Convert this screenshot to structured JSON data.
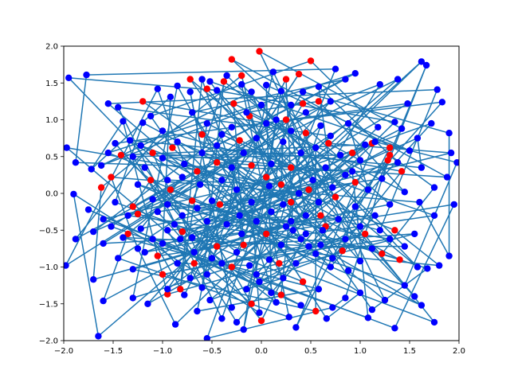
{
  "chart_data": {
    "type": "scatter",
    "title": "",
    "xlabel": "",
    "ylabel": "",
    "xlim": [
      -2.0,
      2.0
    ],
    "ylim": [
      -2.0,
      2.0
    ],
    "grid": false,
    "legend": "none",
    "x_ticks": [
      "−2.0",
      "−1.5",
      "−1.0",
      "−0.5",
      "0.0",
      "0.5",
      "1.0",
      "1.5",
      "2.0"
    ],
    "y_ticks": [
      "−2.0",
      "−1.5",
      "−1.0",
      "−0.5",
      "0.0",
      "0.5",
      "1.0",
      "1.5",
      "2.0"
    ],
    "colors": {
      "blue": "#0000ff",
      "red": "#ff0000",
      "line": "#1f77b4"
    },
    "series": [
      {
        "color": "#0000ff",
        "points": [
          [
            -1.95,
            1.57
          ],
          [
            -1.77,
            1.61
          ],
          [
            -1.55,
            1.22
          ],
          [
            -1.45,
            1.17
          ],
          [
            -1.4,
            0.98
          ],
          [
            -1.33,
            0.72
          ],
          [
            -1.2,
            0.96
          ],
          [
            -1.05,
            1.42
          ],
          [
            -0.92,
            1.31
          ],
          [
            -0.85,
            1.46
          ],
          [
            -0.72,
            1.38
          ],
          [
            -0.6,
            1.55
          ],
          [
            -0.52,
            1.52
          ],
          [
            -0.45,
            1.4
          ],
          [
            -0.35,
            1.6
          ],
          [
            -0.1,
            1.38
          ],
          [
            0.05,
            1.47
          ],
          [
            0.2,
            1.39
          ],
          [
            0.42,
            1.38
          ],
          [
            0.58,
            1.45
          ],
          [
            0.75,
            1.69
          ],
          [
            0.85,
            1.55
          ],
          [
            0.95,
            1.63
          ],
          [
            1.2,
            1.48
          ],
          [
            1.38,
            1.55
          ],
          [
            1.62,
            1.79
          ],
          [
            1.67,
            1.74
          ],
          [
            1.78,
            1.41
          ],
          [
            1.83,
            1.24
          ],
          [
            1.48,
            1.22
          ],
          [
            1.35,
            0.97
          ],
          [
            1.18,
            0.9
          ],
          [
            1.05,
            0.66
          ],
          [
            0.88,
            0.95
          ],
          [
            0.7,
            0.78
          ],
          [
            0.55,
            0.62
          ],
          [
            0.4,
            0.55
          ],
          [
            0.22,
            0.7
          ],
          [
            0.1,
            0.4
          ],
          [
            -1.97,
            0.62
          ],
          [
            -1.88,
            0.42
          ],
          [
            -1.72,
            0.33
          ],
          [
            -1.62,
            0.38
          ],
          [
            -1.55,
            0.55
          ],
          [
            -1.48,
            0.68
          ],
          [
            -1.3,
            0.5
          ],
          [
            -1.18,
            0.35
          ],
          [
            -1.0,
            0.48
          ],
          [
            -0.8,
            0.22
          ],
          [
            -0.62,
            0.12
          ],
          [
            -0.4,
            0.18
          ],
          [
            -0.25,
            0.05
          ],
          [
            -1.9,
            -0.01
          ],
          [
            -1.75,
            -0.22
          ],
          [
            -1.6,
            -0.35
          ],
          [
            -1.48,
            -0.12
          ],
          [
            -1.35,
            -0.3
          ],
          [
            -1.22,
            -0.48
          ],
          [
            -1.05,
            -0.25
          ],
          [
            -0.88,
            -0.42
          ],
          [
            -0.7,
            -0.6
          ],
          [
            -0.55,
            -0.38
          ],
          [
            -1.98,
            -0.98
          ],
          [
            -1.88,
            -0.62
          ],
          [
            -1.7,
            -0.52
          ],
          [
            -1.6,
            -0.68
          ],
          [
            -1.45,
            -0.88
          ],
          [
            -1.3,
            -1.03
          ],
          [
            -1.18,
            -0.8
          ],
          [
            -1.0,
            -0.68
          ],
          [
            -0.85,
            -0.95
          ],
          [
            -0.72,
            -1.15
          ],
          [
            -0.6,
            -1.28
          ],
          [
            -0.5,
            -0.88
          ],
          [
            -1.7,
            -1.17
          ],
          [
            -1.6,
            -1.46
          ],
          [
            -1.3,
            -1.42
          ],
          [
            -1.15,
            -1.5
          ],
          [
            -0.95,
            -1.3
          ],
          [
            -0.78,
            -1.38
          ],
          [
            -0.65,
            -1.6
          ],
          [
            -0.52,
            -1.45
          ],
          [
            -0.4,
            -1.7
          ],
          [
            -0.3,
            -1.55
          ],
          [
            -0.18,
            -1.85
          ],
          [
            -1.65,
            -1.94
          ],
          [
            -0.87,
            -1.78
          ],
          [
            -0.55,
            -1.97
          ],
          [
            -0.25,
            -1.75
          ],
          [
            -0.02,
            -1.62
          ],
          [
            0.15,
            -1.48
          ],
          [
            0.28,
            -1.68
          ],
          [
            0.4,
            -1.52
          ],
          [
            0.58,
            -1.3
          ],
          [
            0.72,
            -1.55
          ],
          [
            0.85,
            -1.42
          ],
          [
            1.0,
            -1.35
          ],
          [
            1.12,
            -1.58
          ],
          [
            1.25,
            -1.45
          ],
          [
            1.35,
            -1.83
          ],
          [
            1.08,
            -1.69
          ],
          [
            0.66,
            -1.7
          ],
          [
            0.35,
            -1.82
          ],
          [
            1.45,
            -1.25
          ],
          [
            1.55,
            -1.4
          ],
          [
            1.62,
            -1.52
          ],
          [
            1.75,
            -1.75
          ],
          [
            1.58,
            -1.0
          ],
          [
            1.68,
            -1.02
          ],
          [
            1.8,
            -0.98
          ],
          [
            1.9,
            -0.85
          ],
          [
            1.45,
            -0.72
          ],
          [
            1.3,
            -0.62
          ],
          [
            1.12,
            -0.75
          ],
          [
            1.0,
            -0.92
          ],
          [
            0.88,
            -1.05
          ],
          [
            0.72,
            -0.88
          ],
          [
            0.6,
            -0.7
          ],
          [
            0.45,
            -0.55
          ],
          [
            0.3,
            -0.38
          ],
          [
            1.92,
            0.55
          ],
          [
            1.88,
            0.22
          ],
          [
            1.95,
            -0.15
          ],
          [
            1.75,
            0.08
          ],
          [
            1.62,
            0.35
          ],
          [
            1.5,
            0.58
          ],
          [
            1.38,
            0.42
          ],
          [
            1.22,
            0.2
          ],
          [
            1.08,
            0.05
          ],
          [
            0.92,
            0.3
          ],
          [
            0.8,
            0.52
          ],
          [
            0.65,
            0.35
          ],
          [
            0.52,
            0.18
          ],
          [
            0.38,
            0.0
          ],
          [
            0.22,
            -0.15
          ],
          [
            0.08,
            0.1
          ],
          [
            -0.1,
            -0.12
          ],
          [
            -0.22,
            -0.3
          ],
          [
            1.98,
            0.42
          ],
          [
            1.9,
            0.82
          ],
          [
            1.72,
            0.95
          ],
          [
            1.58,
            0.75
          ],
          [
            1.42,
            0.88
          ],
          [
            1.15,
            0.7
          ],
          [
            1.0,
            0.45
          ],
          [
            0.85,
            0.25
          ],
          [
            0.72,
            0.08
          ],
          [
            0.58,
            -0.12
          ],
          [
            0.45,
            -0.3
          ],
          [
            0.32,
            -0.5
          ],
          [
            0.2,
            -0.7
          ],
          [
            0.08,
            -0.9
          ],
          [
            -0.05,
            -1.1
          ],
          [
            -0.15,
            -1.3
          ],
          [
            -0.3,
            0.35
          ],
          [
            -0.18,
            0.55
          ],
          [
            -0.05,
            0.75
          ],
          [
            0.05,
            0.95
          ],
          [
            -0.4,
            0.8
          ],
          [
            -0.55,
            0.95
          ],
          [
            -0.7,
            1.1
          ],
          [
            -0.85,
            0.7
          ],
          [
            -1.0,
            0.85
          ],
          [
            -1.12,
            1.05
          ],
          [
            -1.22,
            0.65
          ],
          [
            -0.95,
            0.18
          ],
          [
            -0.78,
            0.4
          ],
          [
            -0.6,
            0.55
          ],
          [
            -0.45,
            0.65
          ],
          [
            -0.3,
            0.9
          ],
          [
            -0.15,
            1.1
          ],
          [
            0.0,
            1.2
          ],
          [
            0.15,
            1.0
          ],
          [
            0.3,
            0.85
          ],
          [
            0.45,
            1.1
          ],
          [
            0.6,
            0.92
          ],
          [
            0.7,
            1.25
          ],
          [
            0.3,
            1.2
          ],
          [
            -0.2,
            1.48
          ],
          [
            0.12,
            1.65
          ],
          [
            -1.25,
            0.12
          ],
          [
            -1.1,
            -0.08
          ],
          [
            -0.95,
            -0.15
          ],
          [
            -0.8,
            -0.3
          ],
          [
            -0.65,
            -0.2
          ],
          [
            -0.5,
            -0.1
          ],
          [
            -0.35,
            -0.42
          ],
          [
            -0.2,
            -0.55
          ],
          [
            -0.05,
            -0.38
          ],
          [
            0.1,
            -0.25
          ],
          [
            0.25,
            -0.45
          ],
          [
            0.4,
            -0.62
          ],
          [
            0.55,
            -0.82
          ],
          [
            0.7,
            -1.0
          ],
          [
            0.85,
            -0.62
          ],
          [
            1.0,
            -0.45
          ],
          [
            1.15,
            -0.3
          ],
          [
            1.3,
            -0.15
          ],
          [
            1.45,
            0.02
          ],
          [
            1.6,
            -0.12
          ],
          [
            1.75,
            -0.3
          ],
          [
            1.55,
            -0.55
          ],
          [
            1.2,
            -0.5
          ],
          [
            0.95,
            -0.18
          ],
          [
            0.78,
            -0.35
          ],
          [
            0.62,
            -0.5
          ],
          [
            0.48,
            -0.72
          ],
          [
            0.35,
            -0.95
          ],
          [
            0.22,
            -1.15
          ],
          [
            0.1,
            -1.35
          ],
          [
            -0.02,
            -1.2
          ],
          [
            -0.12,
            -0.98
          ],
          [
            -0.25,
            -0.8
          ],
          [
            -0.4,
            -0.95
          ],
          [
            -0.55,
            -1.1
          ],
          [
            -0.68,
            -0.8
          ],
          [
            -0.82,
            -0.62
          ],
          [
            -0.95,
            -0.5
          ],
          [
            -1.1,
            -0.62
          ],
          [
            -1.25,
            -0.75
          ],
          [
            -1.4,
            -0.6
          ],
          [
            -1.52,
            -0.45
          ]
        ]
      },
      {
        "color": "#ff0000",
        "points": [
          [
            -0.72,
            1.55
          ],
          [
            -0.55,
            1.42
          ],
          [
            -0.3,
            1.82
          ],
          [
            -0.38,
            1.52
          ],
          [
            -0.2,
            1.6
          ],
          [
            -0.02,
            1.93
          ],
          [
            0.25,
            1.55
          ],
          [
            0.38,
            1.62
          ],
          [
            0.5,
            1.8
          ],
          [
            0.58,
            1.25
          ],
          [
            0.42,
            1.22
          ],
          [
            0.25,
            1.0
          ],
          [
            -0.12,
            1.05
          ],
          [
            -0.28,
            1.22
          ],
          [
            -1.2,
            1.25
          ],
          [
            -1.42,
            0.52
          ],
          [
            -1.52,
            0.22
          ],
          [
            -1.62,
            0.08
          ],
          [
            -1.3,
            -0.18
          ],
          [
            -1.12,
            0.18
          ],
          [
            -0.92,
            0.05
          ],
          [
            -0.7,
            -0.1
          ],
          [
            -0.8,
            -0.52
          ],
          [
            -1.05,
            -0.85
          ],
          [
            -1.35,
            -0.55
          ],
          [
            -1.25,
            -0.28
          ],
          [
            -1.0,
            -1.1
          ],
          [
            -0.95,
            -1.37
          ],
          [
            -0.82,
            -1.3
          ],
          [
            -0.68,
            -0.95
          ],
          [
            -0.45,
            -0.72
          ],
          [
            -0.3,
            -1.0
          ],
          [
            -0.1,
            -1.5
          ],
          [
            0.0,
            -1.73
          ],
          [
            0.2,
            -1.38
          ],
          [
            0.42,
            -1.2
          ],
          [
            0.55,
            -1.6
          ],
          [
            0.6,
            -0.3
          ],
          [
            0.75,
            -0.05
          ],
          [
            0.95,
            0.15
          ],
          [
            1.28,
            0.45
          ],
          [
            1.3,
            0.62
          ],
          [
            1.35,
            -0.5
          ],
          [
            1.42,
            0.3
          ],
          [
            1.3,
            0.52
          ],
          [
            1.12,
            0.68
          ],
          [
            0.92,
            0.55
          ],
          [
            0.68,
            0.68
          ],
          [
            0.45,
            0.82
          ],
          [
            0.3,
            0.35
          ],
          [
            0.2,
            0.12
          ],
          [
            0.05,
            0.22
          ],
          [
            -0.1,
            0.38
          ],
          [
            -0.22,
            0.72
          ],
          [
            -0.45,
            0.42
          ],
          [
            -0.6,
            0.8
          ],
          [
            -0.9,
            0.62
          ],
          [
            -1.1,
            0.55
          ],
          [
            -0.65,
            0.3
          ],
          [
            -0.42,
            -0.15
          ],
          [
            -0.18,
            -0.7
          ],
          [
            0.05,
            -0.55
          ],
          [
            0.18,
            -0.95
          ],
          [
            0.3,
            -0.12
          ],
          [
            0.48,
            0.05
          ],
          [
            0.65,
            -0.45
          ],
          [
            0.82,
            -0.78
          ],
          [
            1.05,
            -0.55
          ],
          [
            1.22,
            -0.82
          ],
          [
            1.4,
            -0.9
          ]
        ]
      }
    ]
  }
}
